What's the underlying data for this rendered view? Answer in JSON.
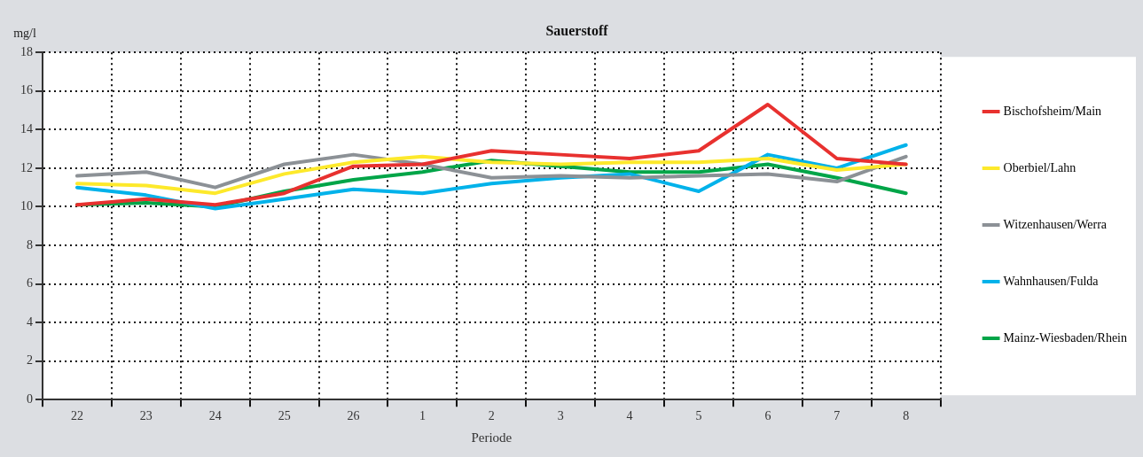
{
  "chart_data": {
    "type": "line",
    "title": "Sauerstoff",
    "ylabel": "mg/l",
    "xlabel": "Periode",
    "categories": [
      "22",
      "23",
      "24",
      "25",
      "26",
      "1",
      "2",
      "3",
      "4",
      "5",
      "6",
      "7",
      "8"
    ],
    "series": [
      {
        "name": "Bischofsheim/Main",
        "color": "#e8312f",
        "values": [
          10.1,
          10.4,
          10.1,
          10.7,
          12.1,
          12.2,
          12.9,
          12.7,
          12.5,
          12.9,
          15.3,
          12.5,
          12.2
        ]
      },
      {
        "name": "Oberbiel/Lahn",
        "color": "#fde92b",
        "values": [
          11.2,
          11.1,
          10.7,
          11.7,
          12.3,
          12.6,
          12.3,
          12.2,
          12.3,
          12.3,
          12.5,
          11.9,
          12.2
        ]
      },
      {
        "name": "Witzenhausen/Werra",
        "color": "#8c9196",
        "values": [
          11.6,
          11.8,
          11.0,
          12.2,
          12.7,
          12.2,
          11.5,
          11.6,
          11.5,
          11.6,
          11.7,
          11.3,
          12.6
        ]
      },
      {
        "name": "Wahnhausen/Fulda",
        "color": "#00b2ea",
        "values": [
          11.0,
          10.6,
          9.9,
          10.4,
          10.9,
          10.7,
          11.2,
          11.5,
          11.7,
          10.8,
          12.7,
          12.0,
          13.2
        ]
      },
      {
        "name": "Mainz-Wiesbaden/Rhein",
        "color": "#00a548",
        "values": [
          10.1,
          10.2,
          10.0,
          10.8,
          11.4,
          11.8,
          12.4,
          12.1,
          11.8,
          11.8,
          12.2,
          11.5,
          10.7
        ]
      }
    ],
    "ylim": [
      0,
      18
    ],
    "yticks": [
      0,
      2,
      4,
      6,
      8,
      10,
      12,
      14,
      16,
      18
    ],
    "grid": true,
    "legend": "right",
    "marker": "none",
    "line_style": "solid"
  }
}
